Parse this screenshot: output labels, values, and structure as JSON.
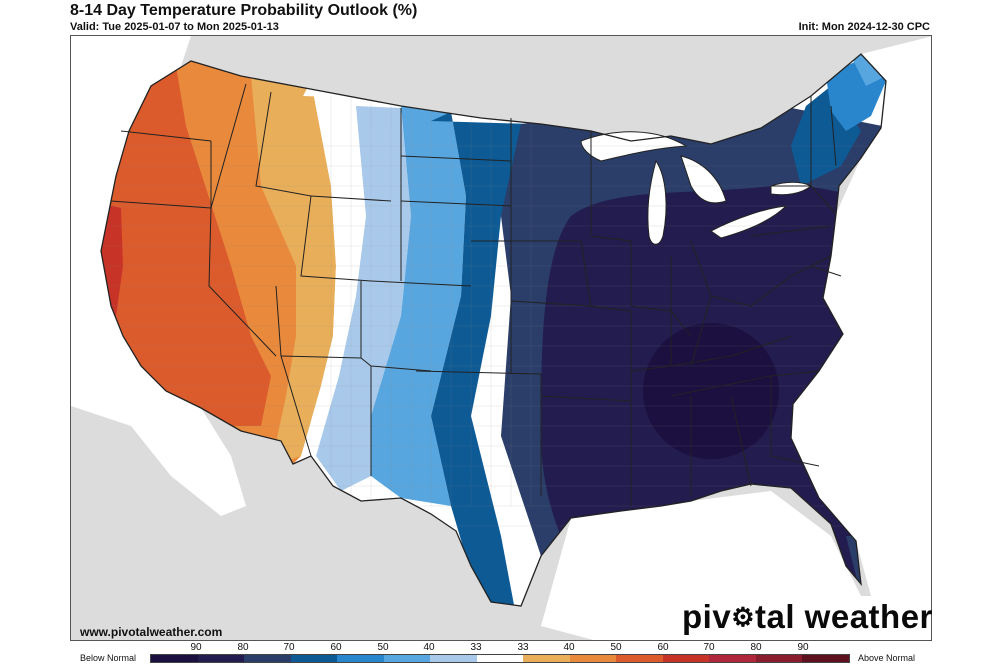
{
  "header": {
    "title": "8-14 Day Temperature Probability Outlook (%)",
    "valid": "Valid: Tue 2025-01-07 to Mon 2025-01-13",
    "init": "Init: Mon 2024-12-30 CPC"
  },
  "footer": {
    "url": "www.pivotalweather.com",
    "brand_left": "piv",
    "brand_right": "tal weather"
  },
  "legend": {
    "below_label": "Below Normal",
    "above_label": "Above Normal",
    "ticks": [
      "90",
      "80",
      "70",
      "60",
      "50",
      "40",
      "33",
      "33",
      "40",
      "50",
      "60",
      "70",
      "80",
      "90"
    ],
    "colors": [
      "#1b1040",
      "#231c4e",
      "#2a3e69",
      "#0d5a95",
      "#2a86cc",
      "#58a6df",
      "#a9c9ea",
      "#ffffff",
      "#e8ae5a",
      "#e9893c",
      "#db5b2c",
      "#c83327",
      "#b0273b",
      "#8a1d2c",
      "#5d1220"
    ]
  },
  "map_colors": {
    "background": "#dcdcdc",
    "land": "#ffffff",
    "state_border": "#222222",
    "county_border": "#888888"
  }
}
